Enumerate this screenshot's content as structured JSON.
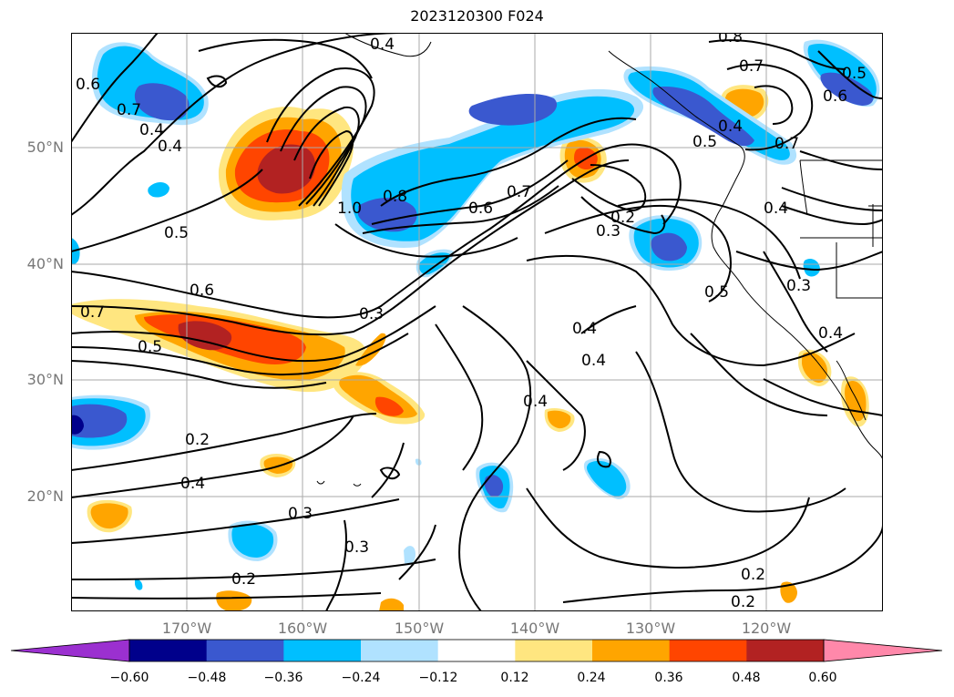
{
  "title": "2023120300 F024",
  "lat_labels": [
    "50°N",
    "40°N",
    "30°N",
    "20°N"
  ],
  "lon_labels": [
    "170°W",
    "160°W",
    "150°W",
    "140°W",
    "130°W",
    "120°W"
  ],
  "colorbar": {
    "ticks": [
      "−0.60",
      "−0.48",
      "−0.36",
      "−0.24",
      "−0.12",
      "0.12",
      "0.24",
      "0.36",
      "0.48",
      "0.60"
    ],
    "colors": [
      "#9b30d0",
      "#00008b",
      "#3a58cf",
      "#00bfff",
      "#b0e2ff",
      "#ffffff",
      "#ffe680",
      "#ffa500",
      "#ff4500",
      "#b22222",
      "#ff88aa"
    ]
  },
  "contour_labels": [
    "0.4",
    "0.6",
    "0.4",
    "0.5",
    "0.6",
    "0.7",
    "0.5",
    "0.4",
    "0.2",
    "0.4",
    "0.3",
    "0.3",
    "0.2",
    "1.0",
    "0.8",
    "0.6",
    "0.7",
    "0.2",
    "0.3",
    "0.3",
    "0.4",
    "0.4",
    "0.5",
    "0.4",
    "0.3",
    "0.4",
    "0.8",
    "0.7",
    "0.7",
    "0.4",
    "0.5",
    "0.6",
    "0.5",
    "0.2",
    "0.2",
    "0.4",
    "0.7"
  ]
}
